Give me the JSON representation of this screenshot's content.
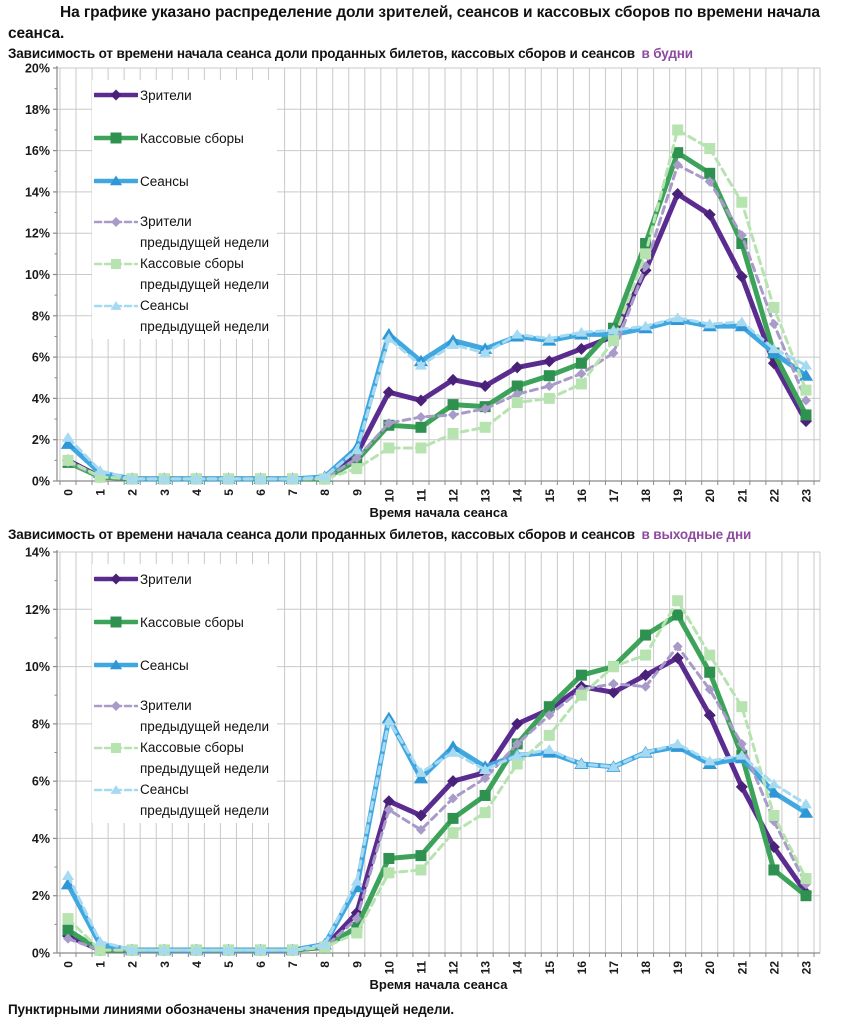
{
  "page": {
    "header": "На графике указано распределение доли зрителей, сеансов и кассовых сборов по времени начала сеанса.",
    "footer_note": "Пунктирными линиями обозначены значения предыдущей недели."
  },
  "colors": {
    "accent": "#8d4a9e",
    "grid": "#c9c9c9",
    "axis": "#8a8a8a",
    "viewers": "#5b2c8f",
    "boxoffice": "#3da35a",
    "sessions": "#41a7e0",
    "viewers_prev": "#a99bc9",
    "boxoffice_prev": "#b7e3b0",
    "sessions_prev": "#a6daf2"
  },
  "chart_data": [
    {
      "type": "line",
      "title": "Зависимость от времени начала сеанса доли проданных билетов, кассовых сборов и сеансов",
      "title_accent": "в будни",
      "xlabel": "Время начала сеанса",
      "grid": "on",
      "legend_position": "upper-left",
      "x": [
        0,
        1,
        2,
        3,
        4,
        5,
        6,
        7,
        8,
        9,
        10,
        11,
        12,
        13,
        14,
        15,
        16,
        17,
        18,
        19,
        20,
        21,
        22,
        23
      ],
      "ylim": [
        0,
        20
      ],
      "yticks": [
        "0%",
        "2%",
        "4%",
        "6%",
        "8%",
        "10%",
        "12%",
        "14%",
        "16%",
        "18%",
        "20%"
      ],
      "series": [
        {
          "name": "Зрители",
          "legend_label": "Зрители",
          "legend_sublabel": "",
          "color": "#5b2c8f",
          "marker_color": "#4a2178",
          "marker": "diamond",
          "dash": false,
          "values": [
            1.0,
            0.2,
            0.1,
            0.1,
            0.1,
            0.1,
            0.1,
            0.1,
            0.1,
            1.3,
            4.3,
            3.9,
            4.9,
            4.6,
            5.5,
            5.8,
            6.4,
            7.0,
            10.2,
            13.9,
            12.9,
            9.9,
            5.7,
            2.9
          ]
        },
        {
          "name": "Кассовые сборы",
          "legend_label": "Кассовые сборы",
          "legend_sublabel": "",
          "color": "#3da35a",
          "marker_color": "#2f9150",
          "marker": "square",
          "dash": false,
          "values": [
            0.9,
            0.2,
            0.1,
            0.1,
            0.1,
            0.1,
            0.1,
            0.1,
            0.1,
            1.0,
            2.7,
            2.6,
            3.7,
            3.6,
            4.6,
            5.1,
            5.7,
            7.4,
            11.5,
            15.9,
            14.9,
            11.5,
            6.2,
            3.2
          ]
        },
        {
          "name": "Сеансы",
          "legend_label": "Сеансы",
          "legend_sublabel": "",
          "color": "#41a7e0",
          "marker_color": "#2f97d5",
          "marker": "triangle",
          "dash": false,
          "values": [
            1.8,
            0.4,
            0.1,
            0.1,
            0.1,
            0.1,
            0.1,
            0.1,
            0.2,
            1.6,
            7.1,
            5.8,
            6.8,
            6.4,
            7.0,
            6.8,
            7.1,
            7.1,
            7.4,
            7.8,
            7.5,
            7.5,
            6.2,
            5.1
          ]
        },
        {
          "name": "Зрители предыдущей недели",
          "legend_label": "Зрители",
          "legend_sublabel": "предыдущей недели",
          "color": "#a99bc9",
          "marker_color": "#a99bc9",
          "marker": "diamond",
          "dash": true,
          "values": [
            0.9,
            0.2,
            0.1,
            0.1,
            0.1,
            0.1,
            0.1,
            0.1,
            0.1,
            1.1,
            2.8,
            3.1,
            3.2,
            3.5,
            4.2,
            4.6,
            5.2,
            6.2,
            10.4,
            15.3,
            14.5,
            11.9,
            7.6,
            3.9
          ]
        },
        {
          "name": "Кассовые сборы предыдущей недели",
          "legend_label": "Кассовые сборы",
          "legend_sublabel": "предыдущей недели",
          "color": "#b7e3b0",
          "marker_color": "#b7e3b0",
          "marker": "square",
          "dash": true,
          "values": [
            1.0,
            0.2,
            0.1,
            0.1,
            0.1,
            0.1,
            0.1,
            0.1,
            0.1,
            0.6,
            1.6,
            1.6,
            2.3,
            2.6,
            3.8,
            4.0,
            4.7,
            6.8,
            11.0,
            17.0,
            16.1,
            13.5,
            8.4,
            4.4
          ]
        },
        {
          "name": "Сеансы предыдущей недели",
          "legend_label": "Сеансы",
          "legend_sublabel": "предыдущей недели",
          "color": "#a6daf2",
          "marker_color": "#a6daf2",
          "marker": "triangle",
          "dash": true,
          "values": [
            2.1,
            0.5,
            0.1,
            0.1,
            0.1,
            0.1,
            0.1,
            0.1,
            0.2,
            1.5,
            6.9,
            5.6,
            6.6,
            6.2,
            7.1,
            6.9,
            7.2,
            7.3,
            7.5,
            7.9,
            7.6,
            7.7,
            6.4,
            5.6
          ]
        }
      ]
    },
    {
      "type": "line",
      "title": "Зависимость от времени начала сеанса доли проданных билетов, кассовых сборов и сеансов",
      "title_accent": "в выходные дни",
      "xlabel": "Время начала сеанса",
      "grid": "on",
      "legend_position": "upper-left",
      "x": [
        0,
        1,
        2,
        3,
        4,
        5,
        6,
        7,
        8,
        9,
        10,
        11,
        12,
        13,
        14,
        15,
        16,
        17,
        18,
        19,
        20,
        21,
        22,
        23
      ],
      "ylim": [
        0,
        14
      ],
      "yticks": [
        "0%",
        "2%",
        "4%",
        "6%",
        "8%",
        "10%",
        "12%",
        "14%"
      ],
      "series": [
        {
          "name": "Зрители",
          "legend_label": "Зрители",
          "legend_sublabel": "",
          "color": "#5b2c8f",
          "marker_color": "#4a2178",
          "marker": "diamond",
          "dash": false,
          "values": [
            0.6,
            0.1,
            0.1,
            0.1,
            0.1,
            0.1,
            0.1,
            0.1,
            0.2,
            1.4,
            5.3,
            4.8,
            6.0,
            6.3,
            8.0,
            8.5,
            9.3,
            9.1,
            9.7,
            10.3,
            8.3,
            5.8,
            3.7,
            2.1
          ]
        },
        {
          "name": "Кассовые сборы",
          "legend_label": "Кассовые сборы",
          "legend_sublabel": "",
          "color": "#3da35a",
          "marker_color": "#2f9150",
          "marker": "square",
          "dash": false,
          "values": [
            0.8,
            0.1,
            0.1,
            0.1,
            0.1,
            0.1,
            0.1,
            0.1,
            0.2,
            0.9,
            3.3,
            3.4,
            4.7,
            5.5,
            7.3,
            8.6,
            9.7,
            10.0,
            11.1,
            11.8,
            9.8,
            6.9,
            2.9,
            2.0
          ]
        },
        {
          "name": "Сеансы",
          "legend_label": "Сеансы",
          "legend_sublabel": "",
          "color": "#41a7e0",
          "marker_color": "#2f97d5",
          "marker": "triangle",
          "dash": false,
          "values": [
            2.4,
            0.3,
            0.1,
            0.1,
            0.1,
            0.1,
            0.1,
            0.1,
            0.3,
            2.3,
            8.2,
            6.1,
            7.2,
            6.5,
            6.9,
            7.0,
            6.6,
            6.5,
            7.0,
            7.2,
            6.6,
            6.8,
            5.6,
            4.9
          ]
        },
        {
          "name": "Зрители предыдущей недели",
          "legend_label": "Зрители",
          "legend_sublabel": "предыдущей недели",
          "color": "#a99bc9",
          "marker_color": "#a99bc9",
          "marker": "diamond",
          "dash": true,
          "values": [
            0.5,
            0.1,
            0.1,
            0.1,
            0.1,
            0.1,
            0.1,
            0.1,
            0.2,
            1.2,
            5.0,
            4.3,
            5.4,
            6.1,
            7.3,
            8.3,
            9.2,
            9.4,
            9.3,
            10.7,
            9.2,
            7.3,
            4.6,
            2.4
          ]
        },
        {
          "name": "Кассовые сборы предыдущей недели",
          "legend_label": "Кассовые сборы",
          "legend_sublabel": "предыдущей недели",
          "color": "#b7e3b0",
          "marker_color": "#b7e3b0",
          "marker": "square",
          "dash": true,
          "values": [
            1.2,
            0.1,
            0.1,
            0.1,
            0.1,
            0.1,
            0.1,
            0.1,
            0.2,
            0.7,
            2.8,
            2.9,
            4.2,
            4.9,
            6.6,
            7.6,
            9.0,
            10.0,
            10.4,
            12.3,
            10.4,
            8.6,
            4.8,
            2.6
          ]
        },
        {
          "name": "Сеансы предыдущей недели",
          "legend_label": "Сеансы",
          "legend_sublabel": "предыдущей недели",
          "color": "#a6daf2",
          "marker_color": "#a6daf2",
          "marker": "triangle",
          "dash": true,
          "values": [
            2.7,
            0.4,
            0.1,
            0.1,
            0.1,
            0.1,
            0.1,
            0.1,
            0.3,
            2.5,
            8.1,
            6.3,
            7.0,
            6.4,
            6.9,
            7.1,
            6.6,
            6.5,
            7.0,
            7.3,
            6.7,
            6.9,
            5.9,
            5.2
          ]
        }
      ]
    }
  ]
}
